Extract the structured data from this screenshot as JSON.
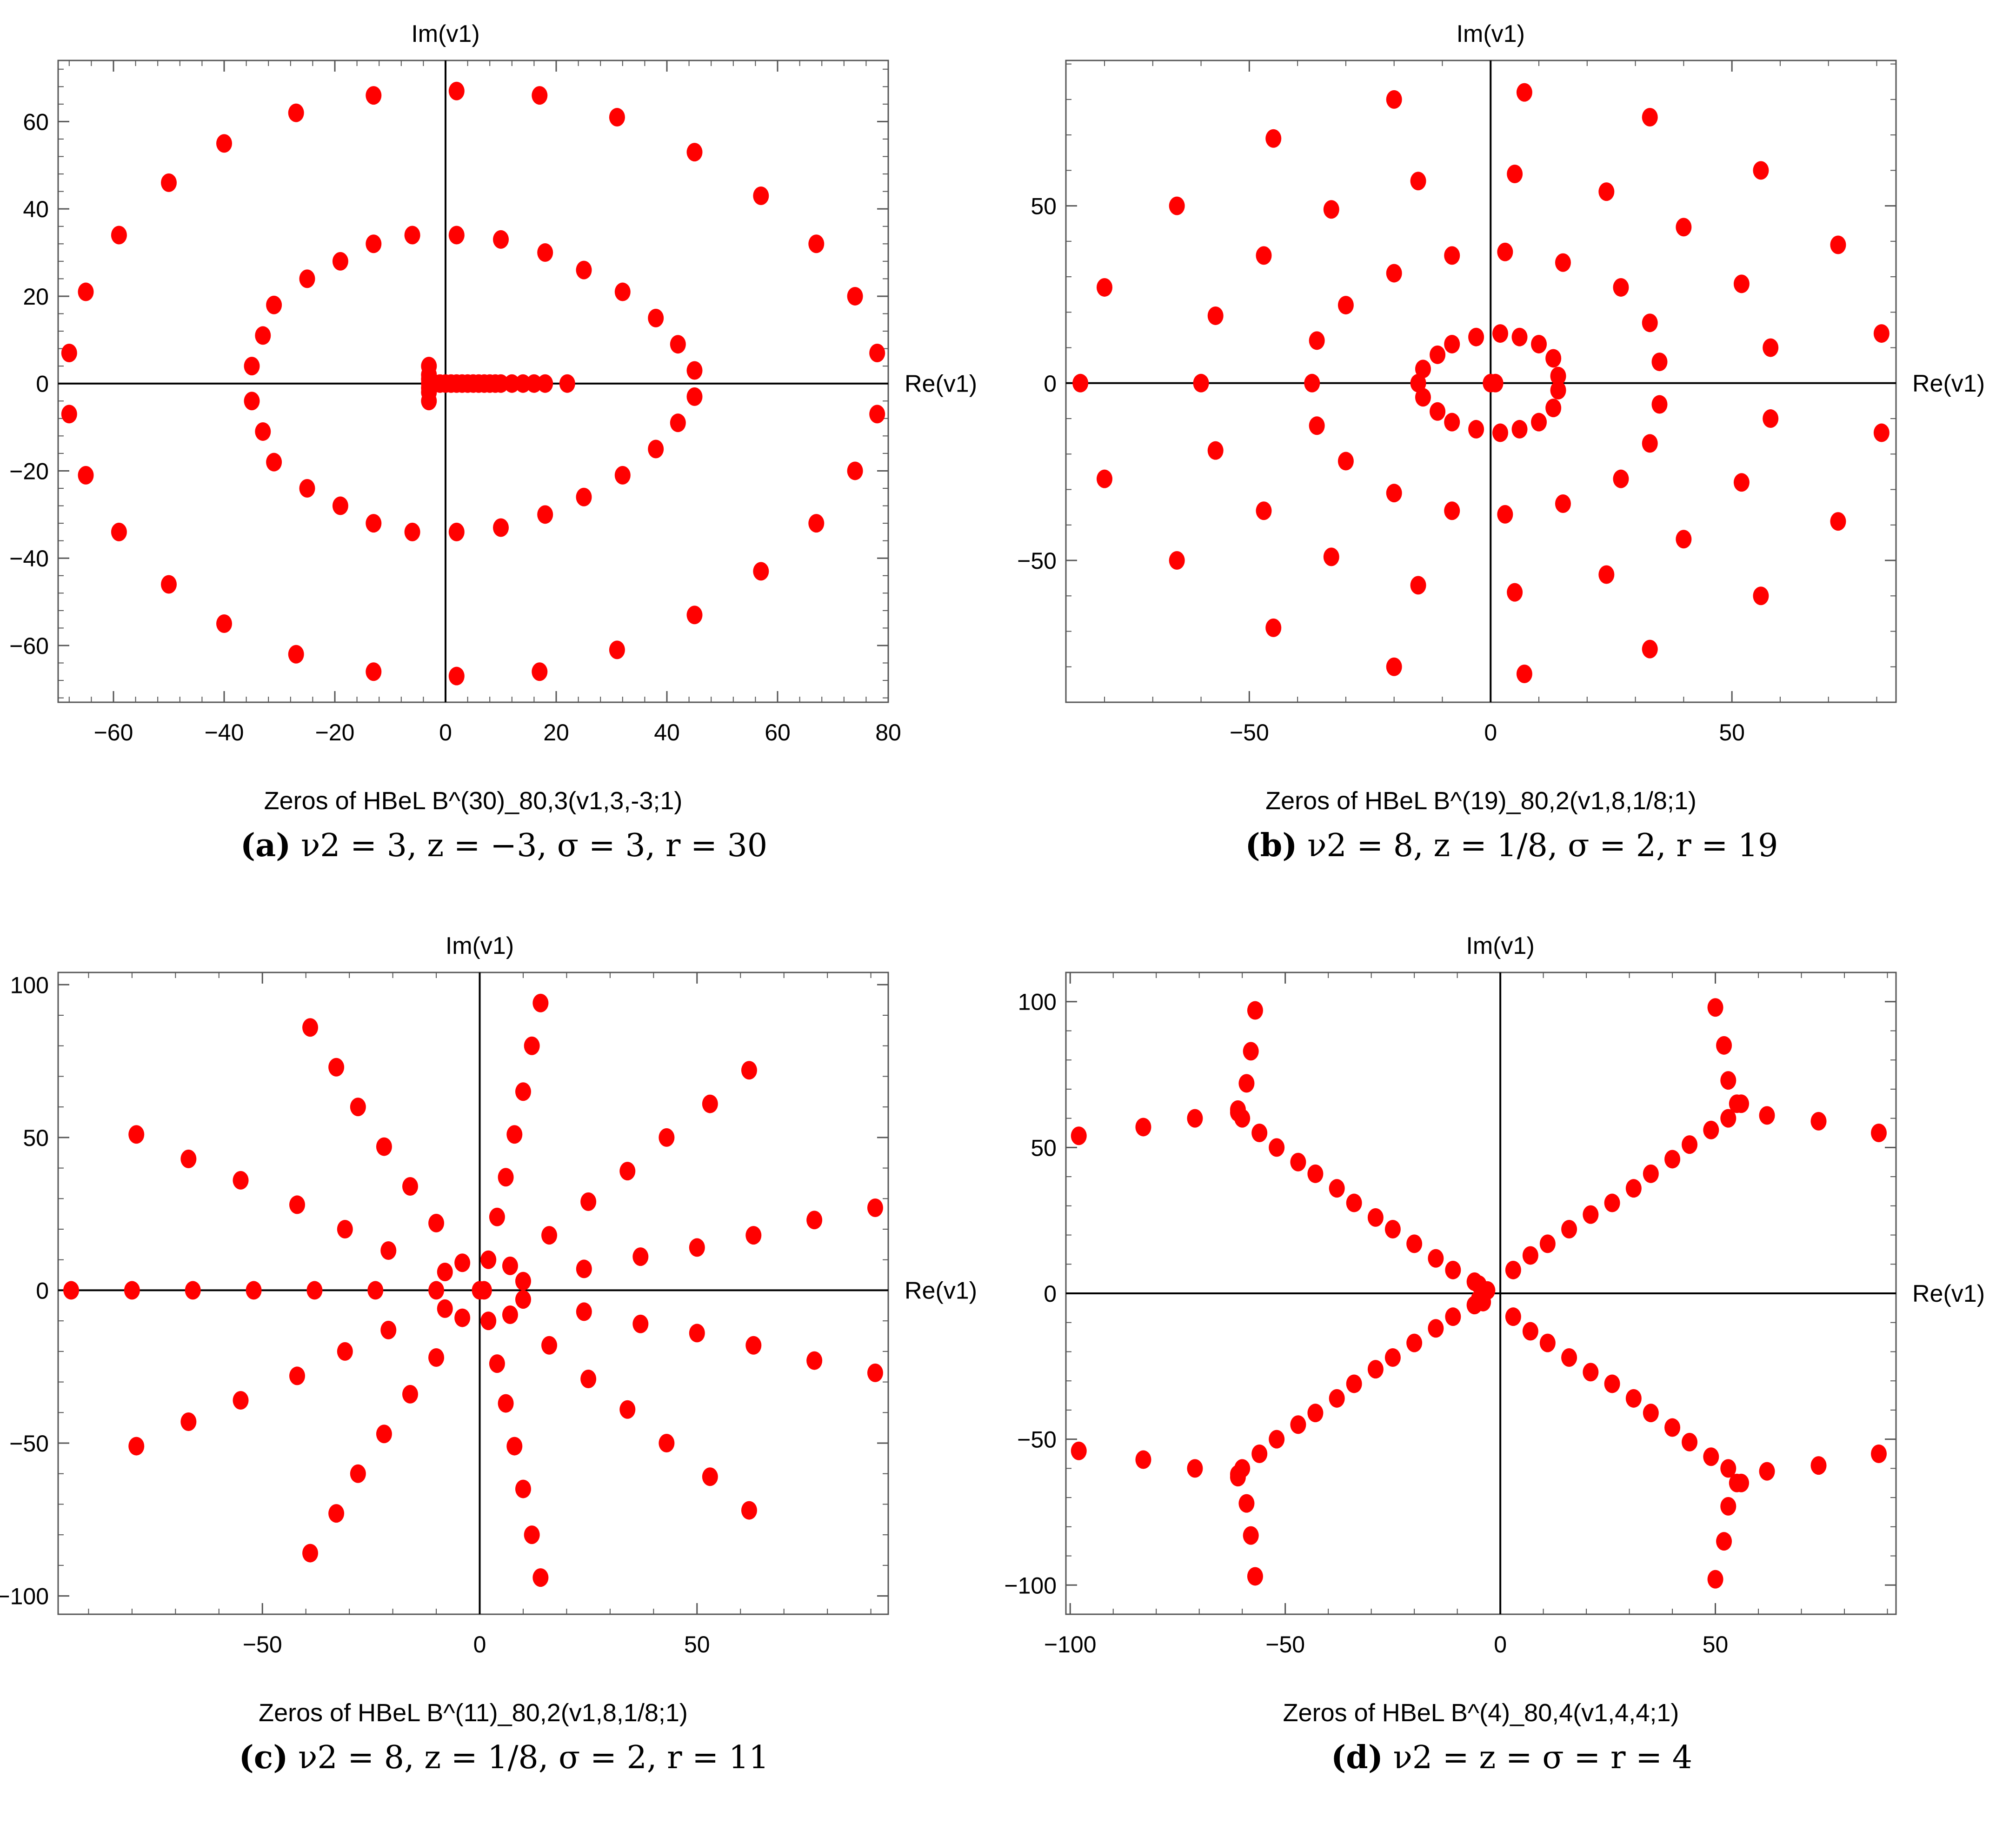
{
  "colors": {
    "point": "#ff0000",
    "frame": "#555555",
    "axis": "#000000"
  },
  "chart_data": [
    {
      "type": "scatter",
      "title": "Zeros of HBeL B^(30)_80,3(v1,3,-3;1)",
      "xlabel": "Re(v1)",
      "ylabel": "Im(v1)",
      "xlim": [
        -70,
        80
      ],
      "ylim": [
        -73,
        74
      ],
      "xticks": [
        -60,
        -40,
        -20,
        0,
        20,
        40,
        60,
        80
      ],
      "yticks": [
        -60,
        -40,
        -20,
        0,
        20,
        40,
        60
      ],
      "grid": false,
      "caption": {
        "tag": "(a)",
        "text": "ν2 = 3, z = −3, σ = 3, r = 30"
      },
      "x": [
        2,
        17,
        31,
        45,
        57,
        67,
        74,
        78,
        78,
        74,
        67,
        57,
        45,
        31,
        17,
        2,
        -13,
        -27,
        -40,
        -50,
        -59,
        -65,
        -68,
        -68,
        -65,
        -59,
        -50,
        -40,
        -27,
        -13,
        2,
        10,
        18,
        25,
        32,
        38,
        42,
        45,
        45,
        42,
        38,
        32,
        25,
        18,
        10,
        2,
        -6,
        -13,
        -19,
        -25,
        -31,
        -33,
        -35,
        -35,
        -33,
        -31,
        -25,
        -19,
        -13,
        -6,
        -3,
        -3,
        -3,
        -3,
        -3,
        -3,
        -3,
        -2,
        -1,
        0,
        1,
        2,
        3,
        4,
        5,
        6,
        7,
        8,
        9,
        10,
        12,
        14,
        16,
        18,
        22
      ],
      "y": [
        67,
        66,
        61,
        53,
        43,
        32,
        20,
        7,
        -7,
        -20,
        -32,
        -43,
        -53,
        -61,
        -66,
        -67,
        -66,
        -62,
        -55,
        -46,
        -34,
        -21,
        -7,
        7,
        21,
        34,
        46,
        55,
        62,
        66,
        34,
        33,
        30,
        26,
        21,
        15,
        9,
        3,
        -3,
        -9,
        -15,
        -21,
        -26,
        -30,
        -33,
        -34,
        -34,
        -32,
        -28,
        -24,
        -18,
        -11,
        -4,
        4,
        11,
        18,
        24,
        28,
        32,
        34,
        4,
        2,
        1,
        0,
        -1,
        -2,
        -4,
        0,
        0,
        0,
        0,
        0,
        0,
        0,
        0,
        0,
        0,
        0,
        0,
        0,
        0,
        0,
        0,
        0,
        0
      ]
    },
    {
      "type": "scatter",
      "title": "Zeros of HBeL B^(19)_80,2(v1,8,1/8;1)",
      "xlabel": "Re(v1)",
      "ylabel": "Im(v1)",
      "xlim": [
        -88,
        84
      ],
      "ylim": [
        -90,
        91
      ],
      "xticks": [
        -50,
        0,
        50
      ],
      "yticks": [
        -50,
        0,
        50
      ],
      "grid": false,
      "caption": {
        "tag": "(b)",
        "text": "ν2 = 8, z = 1/8, σ = 2, r = 19"
      },
      "x": [
        7,
        33,
        56,
        72,
        81,
        81,
        72,
        56,
        33,
        7,
        -20,
        -45,
        -65,
        -80,
        -85,
        -80,
        -65,
        -45,
        -20,
        5,
        24,
        40,
        52,
        58,
        58,
        52,
        40,
        24,
        5,
        -15,
        -33,
        -47,
        -57,
        -60,
        -57,
        -47,
        -33,
        -15,
        3,
        15,
        27,
        33,
        35,
        35,
        33,
        27,
        15,
        3,
        -8,
        -20,
        -30,
        -36,
        -37,
        -36,
        -30,
        -20,
        -8,
        2,
        6,
        10,
        13,
        14,
        14,
        13,
        10,
        6,
        2,
        -3,
        -8,
        -11,
        -14,
        -15,
        -14,
        -11,
        -8,
        -3,
        0,
        1
      ],
      "y": [
        82,
        75,
        60,
        39,
        14,
        -14,
        -39,
        -60,
        -75,
        -82,
        -80,
        -69,
        -50,
        -27,
        0,
        27,
        50,
        69,
        80,
        59,
        54,
        44,
        28,
        10,
        -10,
        -28,
        -44,
        -54,
        -59,
        -57,
        -49,
        -36,
        -19,
        0,
        19,
        36,
        49,
        57,
        37,
        34,
        27,
        17,
        6,
        -6,
        -17,
        -27,
        -34,
        -37,
        -36,
        -31,
        -22,
        -12,
        0,
        12,
        22,
        31,
        36,
        14,
        13,
        11,
        7,
        2,
        -2,
        -7,
        -11,
        -13,
        -14,
        -13,
        -11,
        -8,
        -4,
        0,
        4,
        8,
        11,
        13,
        0,
        0
      ]
    },
    {
      "type": "scatter",
      "title": "Zeros of HBeL B^(11)_80,2(v1,8,1/8;1)",
      "xlabel": "Re(v1)",
      "ylabel": "Im(v1)",
      "xlim": [
        -97,
        94
      ],
      "ylim": [
        -106,
        104
      ],
      "xticks": [
        -50,
        0,
        50
      ],
      "yticks": [
        -100,
        -50,
        0,
        50,
        100
      ],
      "grid": false,
      "caption": {
        "tag": "(c)",
        "text": "ν2 = 8, z = 1/8, σ = 2, r = 11"
      },
      "x": [
        14,
        62,
        91,
        91,
        62,
        14,
        -39,
        -79,
        -94,
        -79,
        -39,
        12,
        53,
        77,
        77,
        53,
        12,
        -33,
        -67,
        -80,
        -67,
        -33,
        10,
        43,
        63,
        63,
        43,
        10,
        -28,
        -55,
        -66,
        -55,
        -28,
        8,
        34,
        50,
        50,
        34,
        8,
        -22,
        -42,
        -52,
        -42,
        -22,
        6,
        25,
        37,
        37,
        25,
        6,
        -16,
        -31,
        -38,
        -31,
        -16,
        4,
        16,
        24,
        24,
        16,
        4,
        -10,
        -21,
        -24,
        -21,
        -10,
        2,
        7,
        10,
        10,
        7,
        2,
        -4,
        -8,
        -10,
        -8,
        -4,
        0,
        1
      ],
      "y": [
        94,
        72,
        27,
        -27,
        -72,
        -94,
        -86,
        -51,
        0,
        51,
        86,
        80,
        61,
        23,
        -23,
        -61,
        -80,
        -73,
        -43,
        0,
        43,
        73,
        65,
        50,
        18,
        -18,
        -50,
        -65,
        -60,
        -36,
        0,
        36,
        60,
        51,
        39,
        14,
        -14,
        -39,
        -51,
        -47,
        -28,
        0,
        28,
        47,
        37,
        29,
        11,
        -11,
        -29,
        -37,
        -34,
        -20,
        0,
        20,
        34,
        24,
        18,
        7,
        -7,
        -18,
        -24,
        -22,
        -13,
        0,
        13,
        22,
        10,
        8,
        3,
        -3,
        -8,
        -10,
        -9,
        -6,
        0,
        6,
        9,
        0,
        0
      ]
    },
    {
      "type": "scatter",
      "title": "Zeros of HBeL B^(4)_80,4(v1,4,4;1)",
      "xlabel": "Re(v1)",
      "ylabel": "Im(v1)",
      "xlim": [
        -101,
        92
      ],
      "ylim": [
        -110,
        110
      ],
      "xticks": [
        -100,
        -50,
        0,
        50
      ],
      "yticks": [
        -100,
        -50,
        0,
        50,
        100
      ],
      "grid": false,
      "caption": {
        "tag": "(d)",
        "text": "ν2 = z = σ = r = 4"
      },
      "x": [
        -98,
        -83,
        -71,
        -61,
        -60,
        -56,
        -52,
        -47,
        -43,
        -38,
        -34,
        -29,
        -25,
        -20,
        -15,
        -11,
        -6,
        -3,
        -5,
        -98,
        -83,
        -71,
        -61,
        -60,
        -56,
        -52,
        -47,
        -43,
        -38,
        -34,
        -29,
        -25,
        -20,
        -15,
        -11,
        -6,
        -4,
        -5,
        88,
        74,
        62,
        56,
        53,
        49,
        44,
        40,
        35,
        31,
        26,
        21,
        16,
        11,
        7,
        3,
        88,
        74,
        62,
        56,
        53,
        49,
        44,
        40,
        35,
        31,
        26,
        21,
        16,
        11,
        7,
        3,
        -57,
        -58,
        -59,
        -61,
        -57,
        -58,
        -59,
        -61,
        50,
        52,
        53,
        55,
        50,
        52,
        53,
        55
      ],
      "y": [
        54,
        57,
        60,
        62,
        60,
        55,
        50,
        45,
        41,
        36,
        31,
        26,
        22,
        17,
        12,
        8,
        4,
        1,
        3,
        -54,
        -57,
        -60,
        -62,
        -60,
        -55,
        -50,
        -45,
        -41,
        -36,
        -31,
        -26,
        -22,
        -17,
        -12,
        -8,
        -4,
        -3,
        -2,
        55,
        59,
        61,
        65,
        60,
        56,
        51,
        46,
        41,
        36,
        31,
        27,
        22,
        17,
        13,
        8,
        -55,
        -59,
        -61,
        -65,
        -60,
        -56,
        -51,
        -46,
        -41,
        -36,
        -31,
        -27,
        -22,
        -17,
        -13,
        -8,
        97,
        83,
        72,
        63,
        -97,
        -83,
        -72,
        -63,
        98,
        85,
        73,
        65,
        -98,
        -85,
        -73,
        -65
      ]
    }
  ]
}
